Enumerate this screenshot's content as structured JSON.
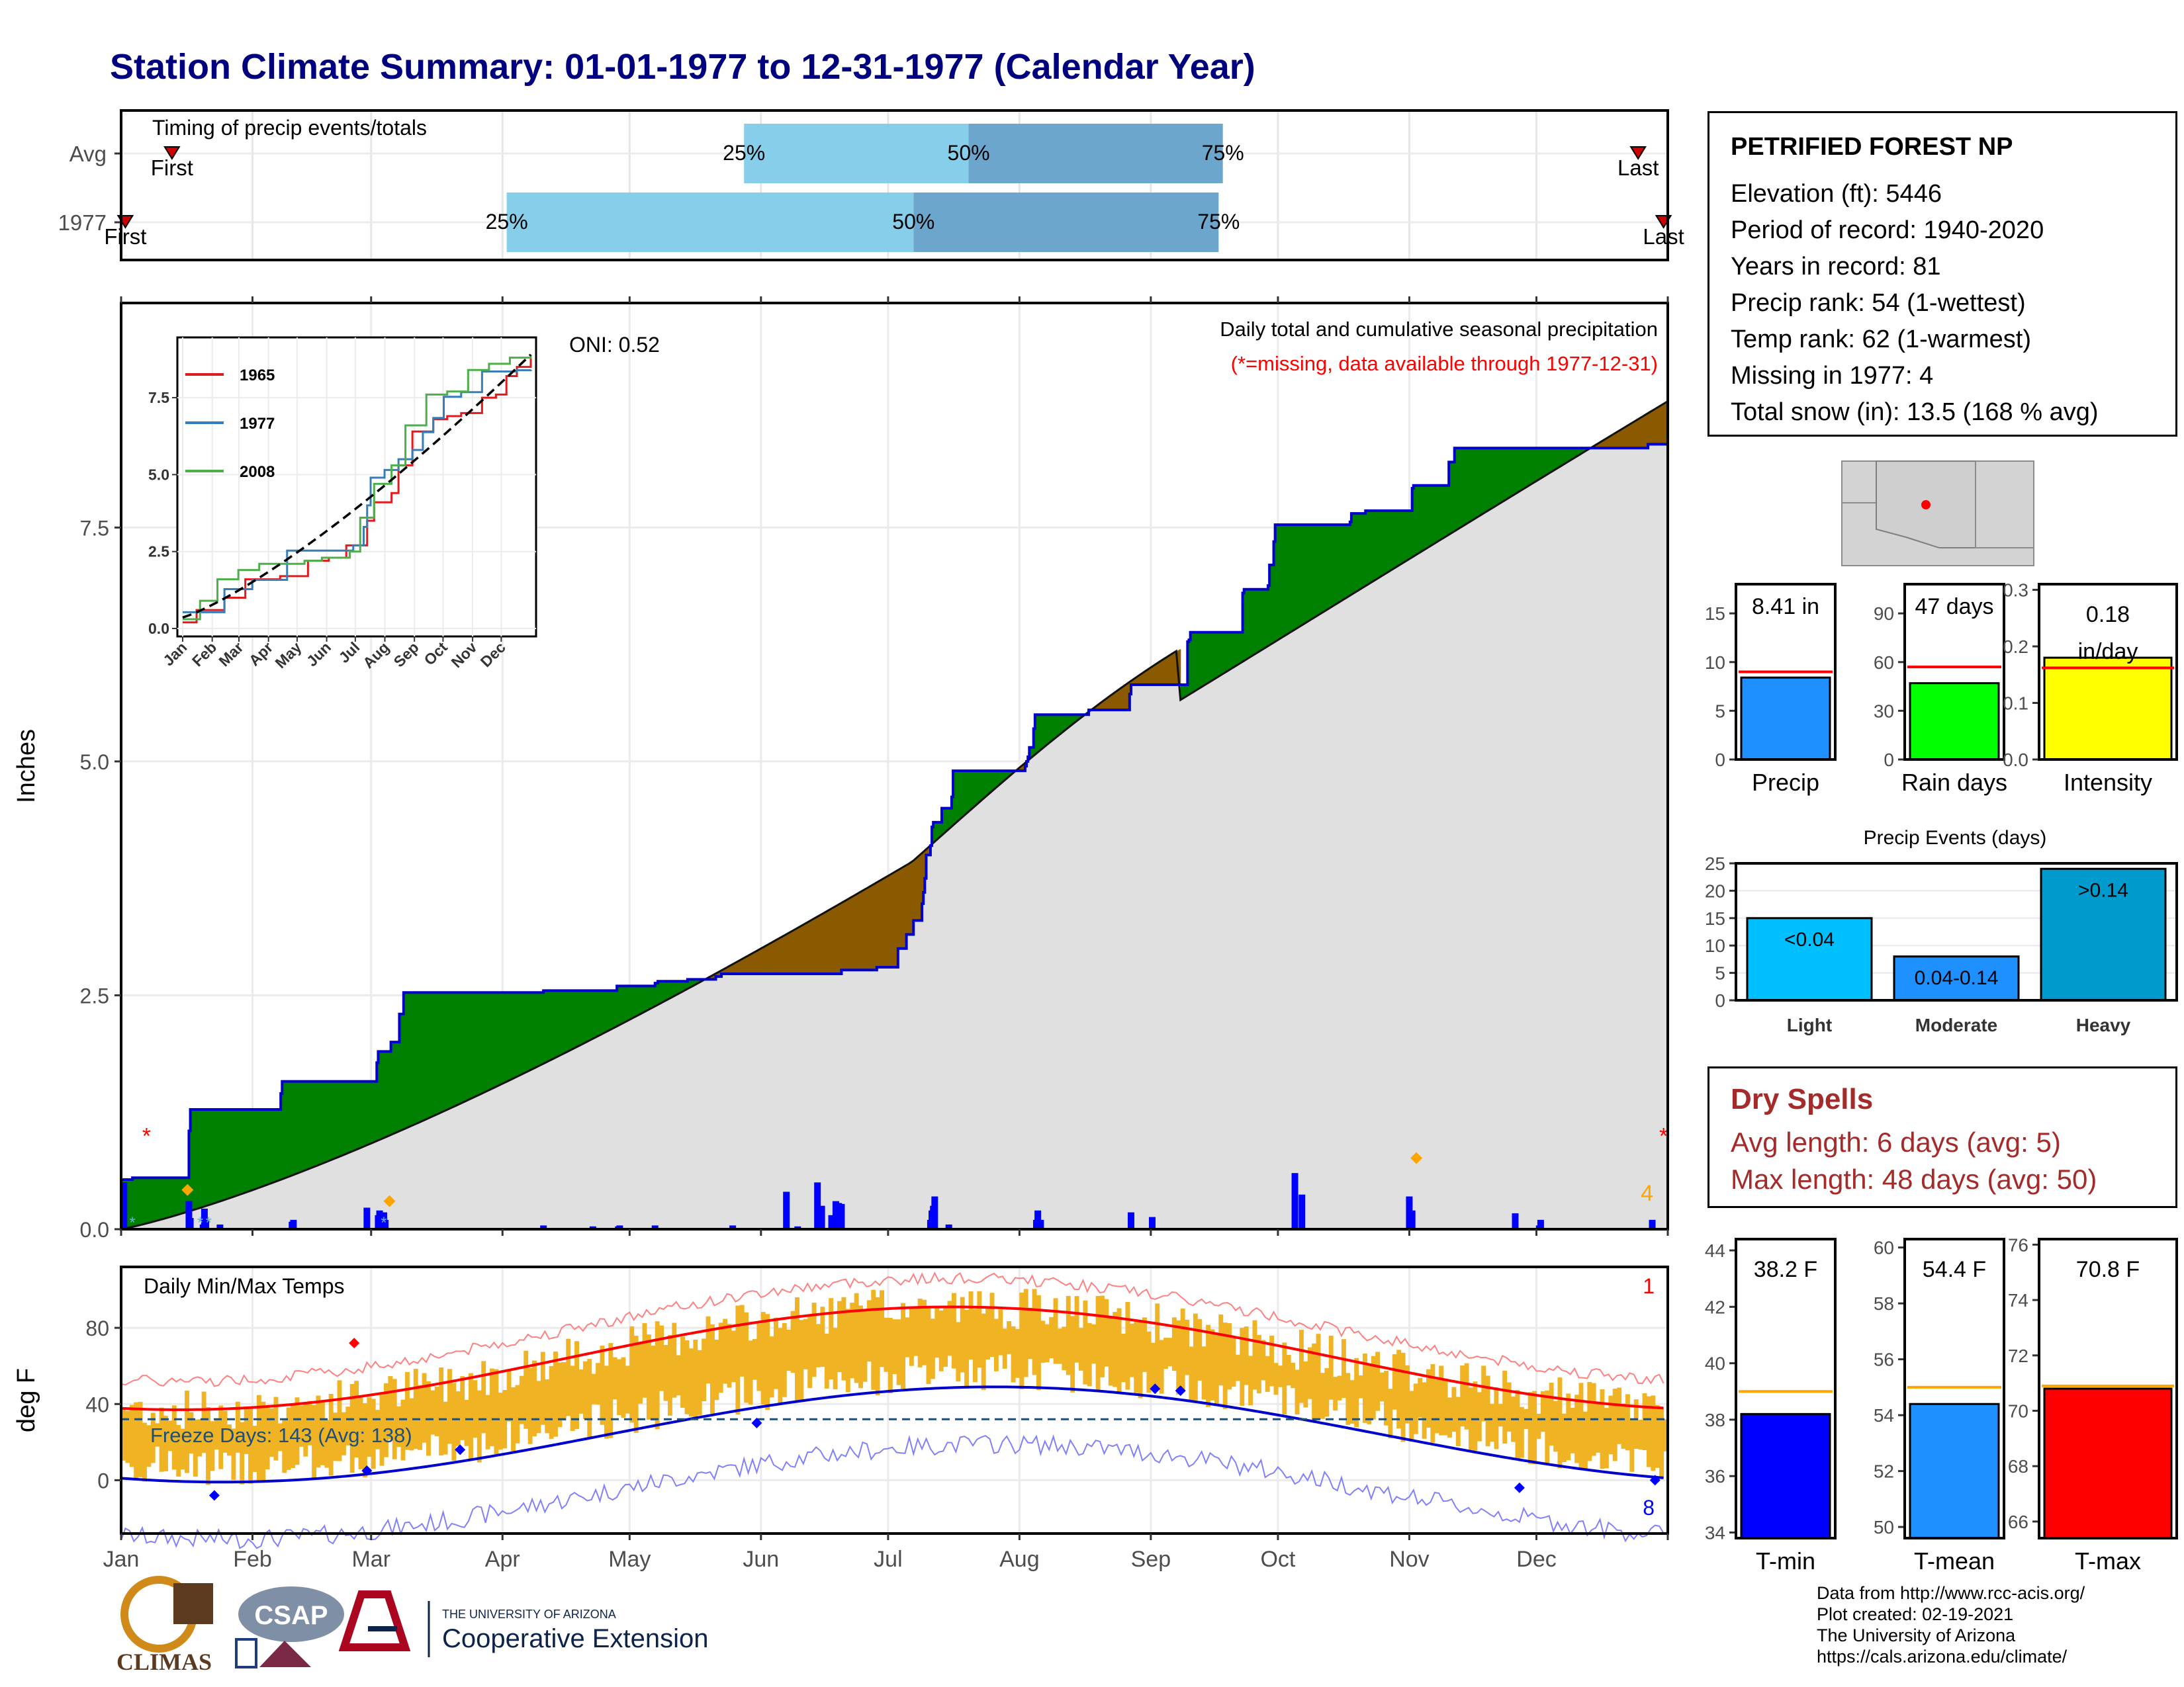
{
  "title": "Station Climate Summary: 01-01-1977 to 12-31-1977 (Calendar Year)",
  "colors": {
    "title": "#00007f",
    "cum1977": "#0000cd",
    "wetter": "#008000",
    "drier": "#8b5a00",
    "avgfill": "#e0e0e0",
    "tempbar": "#f0b323",
    "tmax": "#ff0000",
    "tmin": "#0000cd"
  },
  "timing": {
    "title": "Timing of precip events/totals",
    "rows": [
      {
        "label": "Avg",
        "first_doy": 12,
        "p25_doy": 147,
        "p50_doy": 200,
        "p75_doy": 260,
        "last_doy": 358,
        "p25_label": "25%",
        "p50_label": "50%",
        "p75_label": "75%",
        "first_label": "First",
        "last_label": "Last"
      },
      {
        "label": "1977",
        "first_doy": 1,
        "p25_doy": 91,
        "p50_doy": 187,
        "p75_doy": 259,
        "last_doy": 364,
        "p25_label": "25%",
        "p50_label": "50%",
        "p75_label": "75%",
        "first_label": "First",
        "last_label": "Last"
      }
    ]
  },
  "station": {
    "name": "PETRIFIED FOREST NP",
    "rows": [
      "Elevation (ft): 5446",
      "Period of record: 1940-2020",
      "Years in record: 81",
      "Precip rank: 54 (1-wettest)",
      "Temp rank: 62 (1-warmest)",
      "Missing in 1977: 4",
      "Total snow (in): 13.5 (168 % avg)"
    ]
  },
  "month_labels": [
    "Jan",
    "Feb",
    "Mar",
    "Apr",
    "May",
    "Jun",
    "Jul",
    "Aug",
    "Sep",
    "Oct",
    "Nov",
    "Dec"
  ],
  "chart_data": [
    {
      "type": "area",
      "id": "cumulative_precip",
      "ylabel": "Inches",
      "ylim": [
        0,
        9.9
      ],
      "yticks": [
        0.0,
        2.5,
        5.0,
        7.5
      ],
      "ytick_labels": [
        "0.0",
        "2.5",
        "5.0",
        "7.5"
      ],
      "annotation_title": "Daily total and cumulative seasonal precipitation",
      "annotation_missing": "(*=missing, data available through 1977-12-31)",
      "oni_label": "ONI: 0.52",
      "missing_count_label": "4",
      "cum1977_steps": [
        [
          0,
          0.53
        ],
        [
          7,
          0.53
        ],
        [
          8,
          0.55
        ],
        [
          47,
          0.55
        ],
        [
          48,
          1.05
        ],
        [
          49,
          1.28
        ],
        [
          112,
          1.28
        ],
        [
          113,
          1.45
        ],
        [
          114,
          1.58
        ],
        [
          180,
          1.58
        ],
        [
          181,
          1.78
        ],
        [
          182,
          1.9
        ],
        [
          190,
          1.9
        ],
        [
          191,
          2.0
        ],
        [
          196,
          2.0
        ],
        [
          197,
          2.3
        ],
        [
          199,
          2.3
        ],
        [
          200,
          2.53
        ],
        [
          298,
          2.53
        ],
        [
          299,
          2.55
        ],
        [
          350,
          2.55
        ],
        [
          351,
          2.6
        ],
        [
          377,
          2.6
        ],
        [
          378,
          2.63
        ],
        [
          380,
          2.65
        ],
        [
          400,
          2.65
        ],
        [
          401,
          2.67
        ],
        [
          410,
          2.67
        ],
        [
          421,
          2.7
        ],
        [
          424,
          2.7
        ],
        [
          425,
          2.73
        ],
        [
          507,
          2.73
        ],
        [
          510,
          2.77
        ],
        [
          534,
          2.77
        ],
        [
          535,
          2.8
        ],
        [
          549,
          2.8
        ],
        [
          550,
          3.0
        ],
        [
          555,
          3.0
        ],
        [
          556,
          3.15
        ],
        [
          560,
          3.15
        ],
        [
          561,
          3.3
        ],
        [
          566,
          3.3
        ],
        [
          567,
          3.48
        ],
        [
          568,
          3.6
        ],
        [
          569,
          3.75
        ],
        [
          570,
          4.0
        ],
        [
          572,
          4.0
        ],
        [
          573,
          4.1
        ],
        [
          574,
          4.3
        ],
        [
          575,
          4.35
        ],
        [
          580,
          4.35
        ],
        [
          581,
          4.5
        ],
        [
          587,
          4.5
        ],
        [
          588,
          4.62
        ],
        [
          589,
          4.9
        ],
        [
          639,
          4.9
        ],
        [
          640,
          4.95
        ],
        [
          641,
          5.0
        ],
        [
          642,
          5.05
        ],
        [
          643,
          5.15
        ],
        [
          645,
          5.15
        ],
        [
          646,
          5.35
        ],
        [
          647,
          5.5
        ],
        [
          684,
          5.5
        ],
        [
          685,
          5.55
        ],
        [
          713,
          5.55
        ],
        [
          714,
          5.72
        ],
        [
          715,
          5.82
        ],
        [
          754,
          5.82
        ],
        [
          755,
          6.28
        ],
        [
          756,
          6.3
        ],
        [
          757,
          6.38
        ],
        [
          793,
          6.38
        ],
        [
          794,
          6.8
        ],
        [
          795,
          6.84
        ],
        [
          810,
          6.84
        ],
        [
          812,
          6.88
        ],
        [
          813,
          7.1
        ],
        [
          815,
          7.1
        ],
        [
          816,
          7.35
        ],
        [
          817,
          7.53
        ],
        [
          868,
          7.53
        ],
        [
          870,
          7.56
        ],
        [
          871,
          7.65
        ],
        [
          880,
          7.65
        ],
        [
          881,
          7.68
        ],
        [
          913,
          7.68
        ],
        [
          914,
          7.92
        ],
        [
          915,
          7.95
        ],
        [
          939,
          7.95
        ],
        [
          940,
          8.2
        ],
        [
          943,
          8.2
        ],
        [
          944,
          8.35
        ],
        [
          1080,
          8.35
        ],
        [
          1081,
          8.39
        ],
        [
          1095,
          8.39
        ]
      ],
      "daily_bars": [
        [
          2,
          0.5
        ],
        [
          48,
          0.3
        ],
        [
          49,
          0.12
        ],
        [
          58,
          0.05
        ],
        [
          59,
          0.22
        ],
        [
          60,
          0.1
        ],
        [
          70,
          0.05
        ],
        [
          121,
          0.08
        ],
        [
          122,
          0.1
        ],
        [
          174,
          0.23
        ],
        [
          182,
          0.15
        ],
        [
          183,
          0.2
        ],
        [
          184,
          0.18
        ],
        [
          185,
          0.1
        ],
        [
          186,
          0.18
        ],
        [
          187,
          0.1
        ],
        [
          299,
          0.04
        ],
        [
          334,
          0.03
        ],
        [
          352,
          0.03
        ],
        [
          353,
          0.04
        ],
        [
          378,
          0.04
        ],
        [
          433,
          0.04
        ],
        [
          471,
          0.4
        ],
        [
          479,
          0.03
        ],
        [
          493,
          0.5
        ],
        [
          494,
          0.2
        ],
        [
          496,
          0.25
        ],
        [
          503,
          0.15
        ],
        [
          506,
          0.3
        ],
        [
          508,
          0.28
        ],
        [
          509,
          0.15
        ],
        [
          510,
          0.27
        ],
        [
          573,
          0.1
        ],
        [
          574,
          0.2
        ],
        [
          575,
          0.25
        ],
        [
          576,
          0.35
        ],
        [
          586,
          0.05
        ],
        [
          648,
          0.1
        ],
        [
          649,
          0.2
        ],
        [
          651,
          0.1
        ],
        [
          715,
          0.18
        ],
        [
          730,
          0.13
        ],
        [
          831,
          0.6
        ],
        [
          836,
          0.37
        ],
        [
          912,
          0.35
        ],
        [
          914,
          0.2
        ],
        [
          987,
          0.17
        ],
        [
          1004,
          0.04
        ],
        [
          1005,
          0.1
        ],
        [
          1084,
          0.1
        ]
      ],
      "avg_cumulative_approx": "smooth gray area from 0 (Jan 1) to 8.85 (Dec 31)"
    },
    {
      "type": "line",
      "id": "inset_cumulative",
      "series": [
        {
          "name": "1965"
        },
        {
          "name": "1977"
        },
        {
          "name": "2008"
        }
      ],
      "series_colors": [
        "#e31a1c",
        "#377eb8",
        "#4daf4a"
      ],
      "yticks": [
        0.0,
        2.5,
        5.0,
        7.5
      ],
      "ytick_labels": [
        "0.0",
        "2.5",
        "5.0",
        "7.5"
      ],
      "xtick_labels": [
        "Jan",
        "Feb",
        "Mar",
        "Apr",
        "May",
        "Jun",
        "Jul",
        "Aug",
        "Sep",
        "Oct",
        "Nov",
        "Dec"
      ]
    },
    {
      "type": "bar",
      "id": "precip_total",
      "categories": [
        "Precip"
      ],
      "values": [
        8.41
      ],
      "avg": 9.0,
      "label": "8.41 in",
      "ylim": [
        0,
        18
      ],
      "yticks": [
        0,
        5,
        10,
        15
      ],
      "ytick_labels": [
        "0",
        "5",
        "10",
        "15"
      ],
      "color": "#1e90ff"
    },
    {
      "type": "bar",
      "id": "rain_days",
      "categories": [
        "Rain days"
      ],
      "values": [
        47
      ],
      "avg": 57,
      "label": "47 days",
      "ylim": [
        0,
        108
      ],
      "yticks": [
        0,
        30,
        60,
        90
      ],
      "ytick_labels": [
        "0",
        "30",
        "60",
        "90"
      ],
      "color": "#00ff00"
    },
    {
      "type": "bar",
      "id": "intensity",
      "categories": [
        "Intensity"
      ],
      "values": [
        0.18
      ],
      "avg": 0.162,
      "label": "0.18",
      "label2": "in/day",
      "ylim": [
        0,
        0.31
      ],
      "yticks": [
        0.0,
        0.1,
        0.2,
        0.3
      ],
      "ytick_labels": [
        "0.0",
        "0.1",
        "0.2",
        "0.3"
      ],
      "color": "#ffff00"
    },
    {
      "type": "bar",
      "id": "precip_events",
      "title": "Precip Events (days)",
      "categories": [
        "Light",
        "Moderate",
        "Heavy"
      ],
      "values": [
        15,
        8,
        24
      ],
      "bar_labels": [
        "<0.04",
        "0.04-0.14",
        ">0.14"
      ],
      "ylim": [
        0,
        25
      ],
      "yticks": [
        0,
        5,
        10,
        15,
        20,
        25
      ],
      "ytick_labels": [
        "0",
        "5",
        "10",
        "15",
        "20",
        "25"
      ],
      "colors": [
        "#00bfff",
        "#1e90ff",
        "#009acd"
      ]
    },
    {
      "type": "bar",
      "id": "daily_temps",
      "title": "Daily Min/Max Temps",
      "ylabel": "deg F",
      "ylim": [
        -28,
        112
      ],
      "yticks": [
        0,
        40,
        80
      ],
      "ytick_labels": [
        "0",
        "40",
        "80"
      ],
      "freeze_label": "Freeze Days: 143 (Avg: 138)",
      "freeze_line": 32,
      "count_top": "1",
      "count_bottom": "8"
    },
    {
      "type": "bar",
      "id": "t_min",
      "categories": [
        "T-min"
      ],
      "values": [
        38.2
      ],
      "avg": 39.0,
      "label": "38.2 F",
      "ylim": [
        33.8,
        44.4
      ],
      "yticks": [
        34,
        36,
        38,
        40,
        42,
        44
      ],
      "ytick_labels": [
        "34",
        "36",
        "38",
        "40",
        "42",
        "44"
      ],
      "color": "#0000ff"
    },
    {
      "type": "bar",
      "id": "t_mean",
      "categories": [
        "T-mean"
      ],
      "values": [
        54.4
      ],
      "avg": 55.0,
      "label": "54.4 F",
      "ylim": [
        49.6,
        60.3
      ],
      "yticks": [
        50,
        52,
        54,
        56,
        58,
        60
      ],
      "ytick_labels": [
        "50",
        "52",
        "54",
        "56",
        "58",
        "60"
      ],
      "color": "#1e90ff"
    },
    {
      "type": "bar",
      "id": "t_max",
      "categories": [
        "T-max"
      ],
      "values": [
        70.8
      ],
      "avg": 70.9,
      "label": "70.8 F",
      "ylim": [
        65.4,
        76.2
      ],
      "yticks": [
        66,
        68,
        70,
        72,
        74,
        76
      ],
      "ytick_labels": [
        "66",
        "68",
        "70",
        "72",
        "74",
        "76"
      ],
      "color": "#ff0000"
    }
  ],
  "dry_spells": {
    "heading": "Dry Spells",
    "avg_line": "Avg length: 6 days (avg: 5)",
    "max_line": "Max length: 48 days (avg: 50)"
  },
  "footer": [
    "Data from http://www.rcc-acis.org/",
    "Plot created: 02-19-2021",
    "The University of Arizona",
    "https://cals.arizona.edu/climate/"
  ],
  "logos": {
    "climas": "CLIMAS",
    "csap": "CSAP",
    "ua_small": "THE UNIVERSITY OF ARIZONA",
    "coop": "Cooperative Extension"
  }
}
